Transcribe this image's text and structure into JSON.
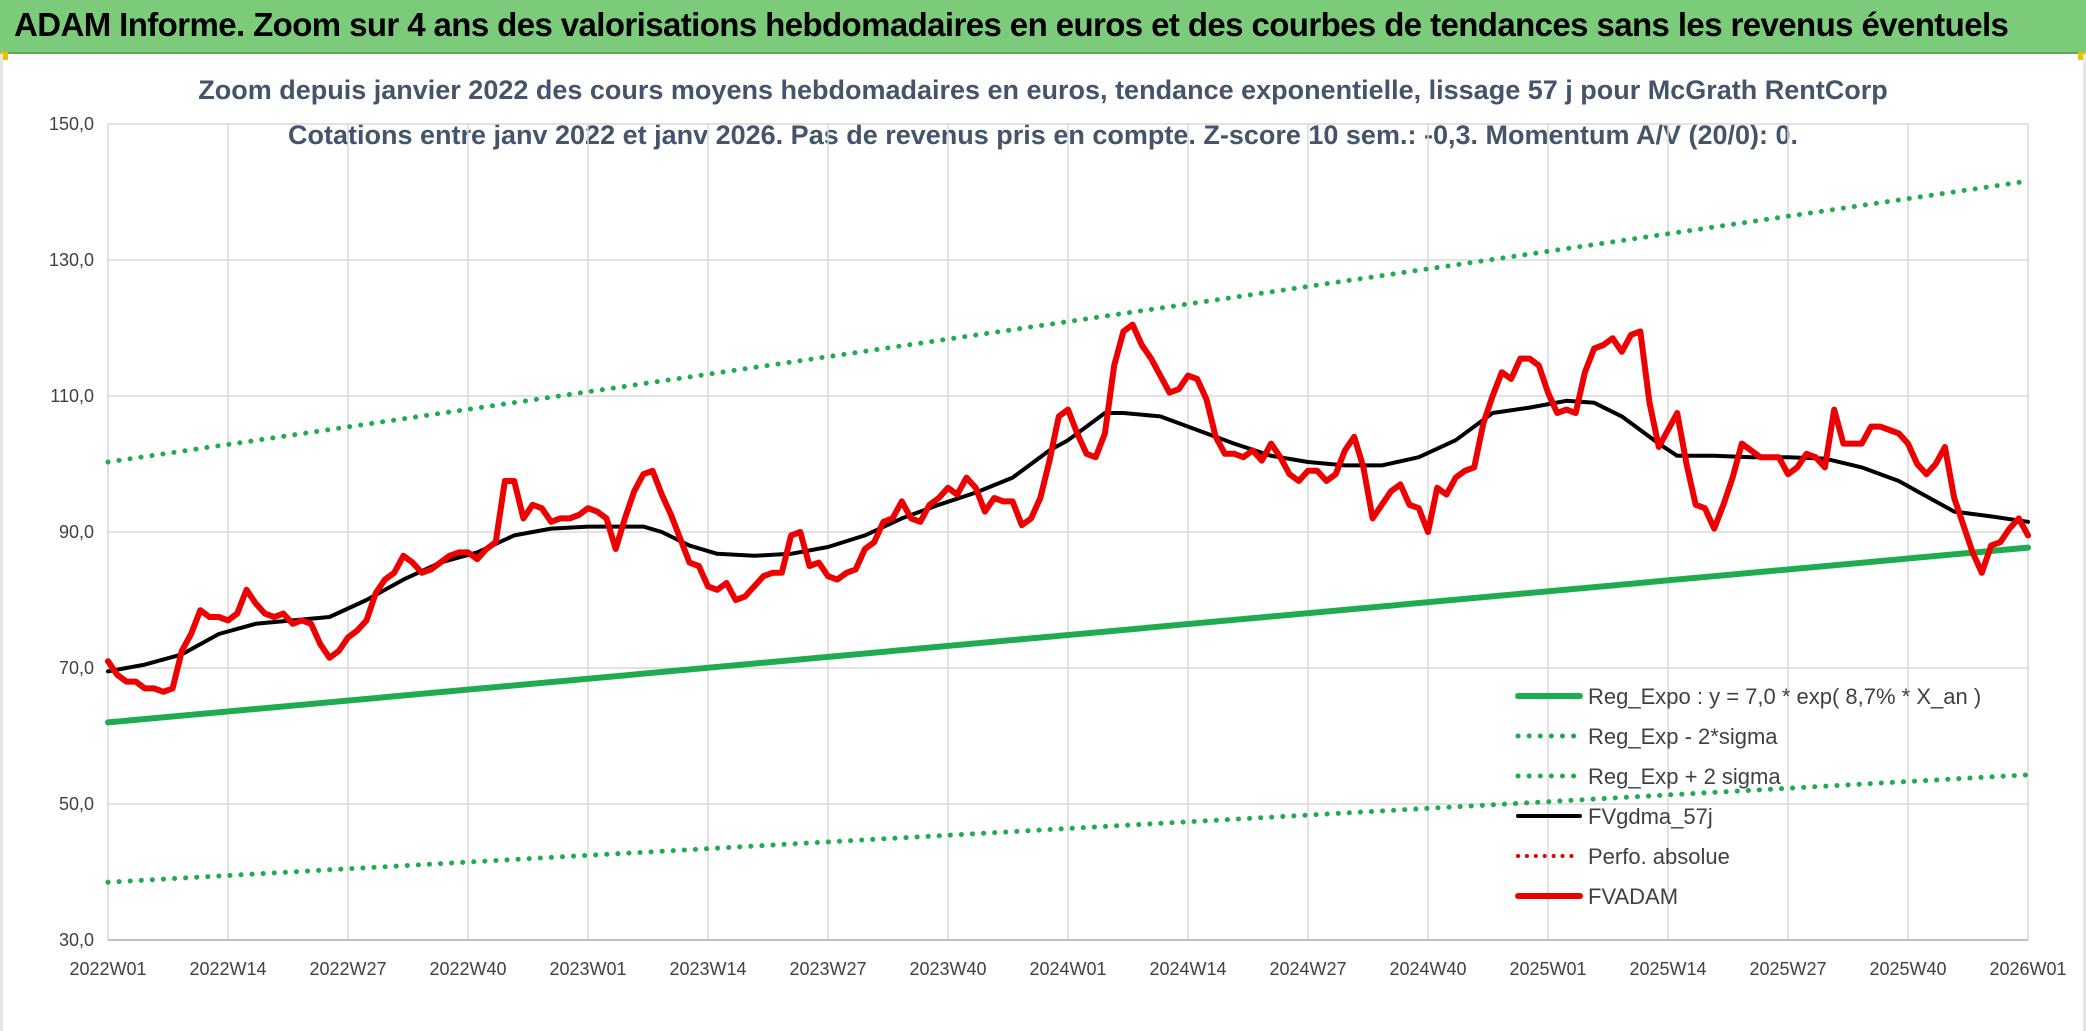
{
  "banner": {
    "title": "ADAM Informe. Zoom sur 4 ans des valorisations hebdomadaires en euros et des courbes de tendances sans les revenus éventuels"
  },
  "chart_data": {
    "type": "line",
    "title_line1": "Zoom depuis janvier 2022 des cours moyens hebdomadaires en euros, tendance exponentielle, lissage 57 j pour McGrath RentCorp",
    "title_line2": "Cotations entre janv 2022 et janv 2026. Pas de revenus pris en compte. Z-score 10 sem.: -0,3. Momentum A/V (20/0): 0.",
    "ylim": [
      30,
      150
    ],
    "yticks": [
      "150,0",
      "130,0",
      "110,0",
      "90,0",
      "70,0",
      "50,0",
      "30,0"
    ],
    "ytick_values": [
      150,
      130,
      110,
      90,
      70,
      50,
      30
    ],
    "xlim": [
      0,
      208
    ],
    "xticks": [
      {
        "label": "2022W01",
        "week": 0
      },
      {
        "label": "2022W14",
        "week": 13
      },
      {
        "label": "2022W27",
        "week": 26
      },
      {
        "label": "2022W40",
        "week": 39
      },
      {
        "label": "2023W01",
        "week": 52
      },
      {
        "label": "2023W14",
        "week": 65
      },
      {
        "label": "2023W27",
        "week": 78
      },
      {
        "label": "2023W40",
        "week": 91
      },
      {
        "label": "2024W01",
        "week": 104
      },
      {
        "label": "2024W14",
        "week": 117
      },
      {
        "label": "2024W27",
        "week": 130
      },
      {
        "label": "2024W40",
        "week": 143
      },
      {
        "label": "2025W01",
        "week": 156
      },
      {
        "label": "2025W14",
        "week": 169
      },
      {
        "label": "2025W27",
        "week": 182
      },
      {
        "label": "2025W40",
        "week": 195
      },
      {
        "label": "2026W01",
        "week": 208
      }
    ],
    "series": [
      {
        "name": "Reg_Expo : y = 7,0 * exp( 8,7% *  X_an )",
        "color": "#1fab50",
        "style": "solid",
        "width": 6,
        "points": [
          [
            0,
            62.0
          ],
          [
            208,
            87.7
          ]
        ]
      },
      {
        "name": "Reg_Exp - 2*sigma",
        "color": "#1fab50",
        "style": "dotted",
        "width": 5,
        "points": [
          [
            0,
            38.5
          ],
          [
            208,
            54.3
          ]
        ]
      },
      {
        "name": "Reg_Exp + 2 sigma",
        "color": "#1fab50",
        "style": "dotted",
        "width": 5,
        "points": [
          [
            0,
            100.3
          ],
          [
            208,
            141.6
          ]
        ]
      },
      {
        "name": "FVgdma_57j",
        "color": "#000000",
        "style": "solid",
        "width": 4,
        "points": [
          [
            0,
            69.5
          ],
          [
            4,
            70.5
          ],
          [
            8,
            72
          ],
          [
            12,
            75
          ],
          [
            16,
            76.5
          ],
          [
            20,
            77
          ],
          [
            24,
            77.5
          ],
          [
            28,
            80
          ],
          [
            32,
            83
          ],
          [
            36,
            85.5
          ],
          [
            40,
            87
          ],
          [
            44,
            89.5
          ],
          [
            48,
            90.5
          ],
          [
            52,
            90.8
          ],
          [
            56,
            90.8
          ],
          [
            58,
            90.8
          ],
          [
            60,
            90
          ],
          [
            63,
            88
          ],
          [
            66,
            86.8
          ],
          [
            70,
            86.5
          ],
          [
            74,
            86.8
          ],
          [
            78,
            87.8
          ],
          [
            82,
            89.5
          ],
          [
            86,
            92
          ],
          [
            90,
            94
          ],
          [
            94,
            95.8
          ],
          [
            98,
            98
          ],
          [
            102,
            102
          ],
          [
            104,
            103.5
          ],
          [
            106,
            105.5
          ],
          [
            108,
            107.5
          ],
          [
            110,
            107.5
          ],
          [
            114,
            107
          ],
          [
            118,
            105
          ],
          [
            122,
            103
          ],
          [
            126,
            101.2
          ],
          [
            130,
            100.3
          ],
          [
            134,
            99.8
          ],
          [
            138,
            99.8
          ],
          [
            142,
            101
          ],
          [
            146,
            103.5
          ],
          [
            150,
            107.5
          ],
          [
            154,
            108.3
          ],
          [
            158,
            109.3
          ],
          [
            161,
            109
          ],
          [
            164,
            107
          ],
          [
            168,
            103
          ],
          [
            170,
            101.2
          ],
          [
            174,
            101.2
          ],
          [
            178,
            101
          ],
          [
            182,
            101
          ],
          [
            186,
            100.8
          ],
          [
            190,
            99.5
          ],
          [
            194,
            97.5
          ],
          [
            196,
            96
          ],
          [
            200,
            93
          ],
          [
            204,
            92.3
          ],
          [
            208,
            91.5
          ]
        ]
      },
      {
        "name": "Perfo. absolue",
        "color": "#e00000",
        "style": "dotted",
        "width": 4,
        "points": []
      },
      {
        "name": "FVADAM",
        "color": "#ee0000",
        "style": "solid",
        "width": 6,
        "points": [
          [
            0,
            71
          ],
          [
            1,
            69
          ],
          [
            2,
            68
          ],
          [
            3,
            68
          ],
          [
            4,
            67
          ],
          [
            5,
            67
          ],
          [
            6,
            66.5
          ],
          [
            7,
            67
          ],
          [
            8,
            72.5
          ],
          [
            9,
            75
          ],
          [
            10,
            78.5
          ],
          [
            11,
            77.5
          ],
          [
            12,
            77.5
          ],
          [
            13,
            77
          ],
          [
            14,
            78
          ],
          [
            15,
            81.5
          ],
          [
            16,
            79.5
          ],
          [
            17,
            78
          ],
          [
            18,
            77.5
          ],
          [
            19,
            78
          ],
          [
            20,
            76.5
          ],
          [
            21,
            77
          ],
          [
            22,
            76.5
          ],
          [
            23,
            73.5
          ],
          [
            24,
            71.5
          ],
          [
            25,
            72.5
          ],
          [
            26,
            74.5
          ],
          [
            27,
            75.5
          ],
          [
            28,
            77
          ],
          [
            29,
            81
          ],
          [
            30,
            83
          ],
          [
            31,
            84
          ],
          [
            32,
            86.5
          ],
          [
            33,
            85.5
          ],
          [
            34,
            84
          ],
          [
            35,
            84.5
          ],
          [
            36,
            85.5
          ],
          [
            37,
            86.5
          ],
          [
            38,
            87
          ],
          [
            39,
            87
          ],
          [
            40,
            86
          ],
          [
            41,
            87.5
          ],
          [
            42,
            88.5
          ],
          [
            43,
            97.5
          ],
          [
            44,
            97.5
          ],
          [
            45,
            92
          ],
          [
            46,
            94
          ],
          [
            47,
            93.5
          ],
          [
            48,
            91.5
          ],
          [
            49,
            92
          ],
          [
            50,
            92
          ],
          [
            51,
            92.5
          ],
          [
            52,
            93.5
          ],
          [
            53,
            93
          ],
          [
            54,
            92
          ],
          [
            55,
            87.5
          ],
          [
            56,
            92
          ],
          [
            57,
            96
          ],
          [
            58,
            98.5
          ],
          [
            59,
            99
          ],
          [
            60,
            95.5
          ],
          [
            61,
            92.5
          ],
          [
            62,
            89
          ],
          [
            63,
            85.5
          ],
          [
            64,
            85
          ],
          [
            65,
            82
          ],
          [
            66,
            81.5
          ],
          [
            67,
            82.5
          ],
          [
            68,
            80
          ],
          [
            69,
            80.5
          ],
          [
            70,
            82
          ],
          [
            71,
            83.5
          ],
          [
            72,
            84
          ],
          [
            73,
            84
          ],
          [
            74,
            89.5
          ],
          [
            75,
            90
          ],
          [
            76,
            85
          ],
          [
            77,
            85.5
          ],
          [
            78,
            83.5
          ],
          [
            79,
            83
          ],
          [
            80,
            84
          ],
          [
            81,
            84.5
          ],
          [
            82,
            87.5
          ],
          [
            83,
            88.5
          ],
          [
            84,
            91.5
          ],
          [
            85,
            92
          ],
          [
            86,
            94.5
          ],
          [
            87,
            92
          ],
          [
            88,
            91.5
          ],
          [
            89,
            94
          ],
          [
            90,
            95
          ],
          [
            91,
            96.5
          ],
          [
            92,
            95.5
          ],
          [
            93,
            98
          ],
          [
            94,
            96.5
          ],
          [
            95,
            93
          ],
          [
            96,
            95
          ],
          [
            97,
            94.5
          ],
          [
            98,
            94.5
          ],
          [
            99,
            91
          ],
          [
            100,
            92
          ],
          [
            101,
            95
          ],
          [
            102,
            100.5
          ],
          [
            103,
            107
          ],
          [
            104,
            108
          ],
          [
            105,
            104.5
          ],
          [
            106,
            101.5
          ],
          [
            107,
            101
          ],
          [
            108,
            104.5
          ],
          [
            109,
            114.5
          ],
          [
            110,
            119.5
          ],
          [
            111,
            120.5
          ],
          [
            112,
            117.5
          ],
          [
            113,
            115.5
          ],
          [
            114,
            113
          ],
          [
            115,
            110.5
          ],
          [
            116,
            111
          ],
          [
            117,
            113
          ],
          [
            118,
            112.5
          ],
          [
            119,
            109.5
          ],
          [
            120,
            104
          ],
          [
            121,
            101.5
          ],
          [
            122,
            101.5
          ],
          [
            123,
            101
          ],
          [
            124,
            102
          ],
          [
            125,
            100.5
          ],
          [
            126,
            103
          ],
          [
            127,
            101
          ],
          [
            128,
            98.5
          ],
          [
            129,
            97.5
          ],
          [
            130,
            99
          ],
          [
            131,
            99
          ],
          [
            132,
            97.5
          ],
          [
            133,
            98.5
          ],
          [
            134,
            102
          ],
          [
            135,
            104
          ],
          [
            136,
            99.5
          ],
          [
            137,
            92
          ],
          [
            138,
            94
          ],
          [
            139,
            96
          ],
          [
            140,
            97
          ],
          [
            141,
            94
          ],
          [
            142,
            93.5
          ],
          [
            143,
            90
          ],
          [
            144,
            96.5
          ],
          [
            145,
            95.5
          ],
          [
            146,
            98
          ],
          [
            147,
            99
          ],
          [
            148,
            99.5
          ],
          [
            149,
            106
          ],
          [
            150,
            110
          ],
          [
            151,
            113.5
          ],
          [
            152,
            112.5
          ],
          [
            153,
            115.5
          ],
          [
            154,
            115.5
          ],
          [
            155,
            114.5
          ],
          [
            156,
            110.5
          ],
          [
            157,
            107.5
          ],
          [
            158,
            108
          ],
          [
            159,
            107.5
          ],
          [
            160,
            113.5
          ],
          [
            161,
            117
          ],
          [
            162,
            117.5
          ],
          [
            163,
            118.5
          ],
          [
            164,
            116.5
          ],
          [
            165,
            119
          ],
          [
            166,
            119.5
          ],
          [
            167,
            109
          ],
          [
            168,
            102.5
          ],
          [
            169,
            105
          ],
          [
            170,
            107.5
          ],
          [
            171,
            100
          ],
          [
            172,
            94
          ],
          [
            173,
            93.5
          ],
          [
            174,
            90.5
          ],
          [
            175,
            94
          ],
          [
            176,
            98
          ],
          [
            177,
            103
          ],
          [
            178,
            102
          ],
          [
            179,
            101
          ],
          [
            180,
            101
          ],
          [
            181,
            101
          ],
          [
            182,
            98.5
          ],
          [
            183,
            99.5
          ],
          [
            184,
            101.5
          ],
          [
            185,
            101
          ],
          [
            186,
            99.5
          ],
          [
            187,
            108
          ],
          [
            188,
            103
          ],
          [
            189,
            103
          ],
          [
            190,
            103
          ],
          [
            191,
            105.5
          ],
          [
            192,
            105.5
          ],
          [
            193,
            105
          ],
          [
            194,
            104.5
          ],
          [
            195,
            103
          ],
          [
            196,
            100
          ],
          [
            197,
            98.5
          ],
          [
            198,
            100
          ],
          [
            199,
            102.5
          ],
          [
            200,
            95
          ],
          [
            201,
            91
          ],
          [
            202,
            87
          ],
          [
            203,
            84
          ],
          [
            204,
            88
          ],
          [
            205,
            88.5
          ],
          [
            206,
            90.5
          ],
          [
            207,
            92
          ],
          [
            208,
            89.5
          ]
        ]
      }
    ]
  },
  "colors": {
    "banner": "#7ccb7a",
    "grid": "#d9d9d9",
    "title_text": "#44546a"
  }
}
